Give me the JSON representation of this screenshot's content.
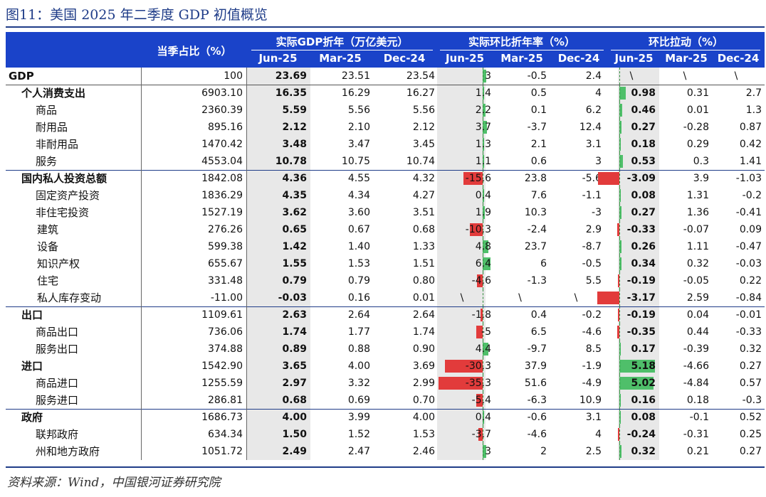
{
  "title": "图11：美国 2025 年二季度 GDP 初值概览",
  "source": "资料来源：Wind，中国银河证券研究院",
  "header": {
    "share": "当季占比（%）",
    "group_gdp": "实际GDP折年（万亿美元）",
    "group_growth": "实际环比折年率（%）",
    "group_pull": "环比拉动（%）",
    "periods": [
      "Jun-25",
      "Mar-25",
      "Dec-24"
    ]
  },
  "colors": {
    "header": "#1a43c9",
    "share_bar": "#6f97d9",
    "neg_bar": "#e23b3b",
    "pos_bar": "#4fbf6a",
    "rule": "#1f3c88"
  },
  "rows": [
    {
      "label": "GDP",
      "indent": 0,
      "bold": true,
      "share": "100",
      "share_val": 100,
      "gdp": [
        "23.69",
        "23.51",
        "23.54"
      ],
      "growth": [
        "3",
        "-0.5",
        "2.4"
      ],
      "growth_val": 3,
      "pull": [
        "\\",
        "\\",
        "\\"
      ],
      "pull_val": null,
      "sep": "top"
    },
    {
      "label": "个人消费支出",
      "indent": 1,
      "bold": true,
      "share": "6903.10",
      "share_val": 6903.1,
      "gdp": [
        "16.35",
        "16.29",
        "16.27"
      ],
      "growth": [
        "1.4",
        "0.5",
        "4"
      ],
      "growth_val": 1.4,
      "pull": [
        "0.98",
        "0.31",
        "2.7"
      ],
      "pull_val": 0.98,
      "sep": "top"
    },
    {
      "label": "商品",
      "indent": 2,
      "bold": false,
      "share": "2360.39",
      "share_val": 2360.39,
      "gdp": [
        "5.59",
        "5.56",
        "5.56"
      ],
      "growth": [
        "2.2",
        "0.1",
        "6.2"
      ],
      "growth_val": 2.2,
      "pull": [
        "0.46",
        "0.01",
        "1.3"
      ],
      "pull_val": 0.46
    },
    {
      "label": "耐用品",
      "indent": 2,
      "bold": false,
      "share": "895.16",
      "share_val": 895.16,
      "gdp": [
        "2.12",
        "2.10",
        "2.12"
      ],
      "growth": [
        "3.7",
        "-3.7",
        "12.4"
      ],
      "growth_val": 3.7,
      "pull": [
        "0.27",
        "-0.28",
        "0.87"
      ],
      "pull_val": 0.27
    },
    {
      "label": "非耐用品",
      "indent": 2,
      "bold": false,
      "share": "1470.42",
      "share_val": 1470.42,
      "gdp": [
        "3.48",
        "3.47",
        "3.45"
      ],
      "growth": [
        "1.3",
        "2.1",
        "3.1"
      ],
      "growth_val": 1.3,
      "pull": [
        "0.18",
        "0.29",
        "0.42"
      ],
      "pull_val": 0.18
    },
    {
      "label": "服务",
      "indent": 2,
      "bold": false,
      "share": "4553.04",
      "share_val": 4553.04,
      "gdp": [
        "10.78",
        "10.75",
        "10.74"
      ],
      "growth": [
        "1.1",
        "0.6",
        "3"
      ],
      "growth_val": 1.1,
      "pull": [
        "0.53",
        "0.3",
        "1.41"
      ],
      "pull_val": 0.53
    },
    {
      "label": "国内私人投资总额",
      "indent": 1,
      "bold": true,
      "share": "1842.08",
      "share_val": 1842.08,
      "gdp": [
        "4.36",
        "4.55",
        "4.32"
      ],
      "growth": [
        "-15.6",
        "23.8",
        "-5.6"
      ],
      "growth_val": -15.6,
      "pull": [
        "-3.09",
        "3.9",
        "-1.03"
      ],
      "pull_val": -3.09,
      "sep": "top"
    },
    {
      "label": "固定资产投资",
      "indent": 2,
      "bold": false,
      "share": "1836.29",
      "share_val": 1836.29,
      "gdp": [
        "4.35",
        "4.34",
        "4.27"
      ],
      "growth": [
        "0.4",
        "7.6",
        "-1.1"
      ],
      "growth_val": 0.4,
      "pull": [
        "0.08",
        "1.31",
        "-0.2"
      ],
      "pull_val": 0.08
    },
    {
      "label": "非住宅投资",
      "indent": 2,
      "bold": false,
      "share": "1527.19",
      "share_val": 1527.19,
      "gdp": [
        "3.62",
        "3.60",
        "3.51"
      ],
      "growth": [
        "1.9",
        "10.3",
        "-3"
      ],
      "growth_val": 1.9,
      "pull": [
        "0.27",
        "1.36",
        "-0.41"
      ],
      "pull_val": 0.27
    },
    {
      "label": "建筑",
      "indent": 3,
      "bold": false,
      "share": "276.26",
      "share_val": 276.26,
      "gdp": [
        "0.65",
        "0.67",
        "0.68"
      ],
      "growth": [
        "-10.3",
        "-2.4",
        "2.9"
      ],
      "growth_val": -10.3,
      "pull": [
        "-0.33",
        "-0.07",
        "0.09"
      ],
      "pull_val": -0.33
    },
    {
      "label": "设备",
      "indent": 3,
      "bold": false,
      "share": "599.38",
      "share_val": 599.38,
      "gdp": [
        "1.42",
        "1.40",
        "1.33"
      ],
      "growth": [
        "4.8",
        "23.7",
        "-8.7"
      ],
      "growth_val": 4.8,
      "pull": [
        "0.26",
        "1.11",
        "-0.47"
      ],
      "pull_val": 0.26
    },
    {
      "label": "知识产权",
      "indent": 3,
      "bold": false,
      "share": "655.67",
      "share_val": 655.67,
      "gdp": [
        "1.55",
        "1.53",
        "1.51"
      ],
      "growth": [
        "6.4",
        "6",
        "-0.5"
      ],
      "growth_val": 6.4,
      "pull": [
        "0.34",
        "0.32",
        "-0.03"
      ],
      "pull_val": 0.34
    },
    {
      "label": "住宅",
      "indent": 3,
      "bold": false,
      "share": "331.48",
      "share_val": 331.48,
      "gdp": [
        "0.79",
        "0.79",
        "0.80"
      ],
      "growth": [
        "-4.6",
        "-1.3",
        "5.5"
      ],
      "growth_val": -4.6,
      "pull": [
        "-0.19",
        "-0.05",
        "0.22"
      ],
      "pull_val": -0.19
    },
    {
      "label": "私人库存变动",
      "indent": 3,
      "bold": false,
      "share": "-11.00",
      "share_val": -11.0,
      "gdp": [
        "-0.03",
        "0.16",
        "0.01"
      ],
      "growth": [
        "\\",
        "\\",
        "\\"
      ],
      "growth_val": null,
      "pull": [
        "-3.17",
        "2.59",
        "-0.84"
      ],
      "pull_val": -3.17
    },
    {
      "label": "出口",
      "indent": 1,
      "bold": true,
      "share": "1109.61",
      "share_val": 1109.61,
      "gdp": [
        "2.63",
        "2.64",
        "2.64"
      ],
      "growth": [
        "-1.8",
        "0.4",
        "-0.2"
      ],
      "growth_val": -1.8,
      "pull": [
        "-0.19",
        "0.04",
        "-0.01"
      ],
      "pull_val": -0.19,
      "sep": "top"
    },
    {
      "label": "商品出口",
      "indent": 2,
      "bold": false,
      "share": "736.06",
      "share_val": 736.06,
      "gdp": [
        "1.74",
        "1.77",
        "1.74"
      ],
      "growth": [
        "-5",
        "6.5",
        "-4.6"
      ],
      "growth_val": -5,
      "pull": [
        "-0.35",
        "0.44",
        "-0.33"
      ],
      "pull_val": -0.35
    },
    {
      "label": "服务出口",
      "indent": 2,
      "bold": false,
      "share": "374.88",
      "share_val": 374.88,
      "gdp": [
        "0.89",
        "0.88",
        "0.90"
      ],
      "growth": [
        "4.4",
        "-9.7",
        "8.5"
      ],
      "growth_val": 4.4,
      "pull": [
        "0.17",
        "-0.39",
        "0.32"
      ],
      "pull_val": 0.17
    },
    {
      "label": "进口",
      "indent": 1,
      "bold": true,
      "share": "1542.90",
      "share_val": 1542.9,
      "gdp": [
        "3.65",
        "4.00",
        "3.69"
      ],
      "growth": [
        "-30.3",
        "37.9",
        "-1.9"
      ],
      "growth_val": -30.3,
      "pull": [
        "5.18",
        "-4.66",
        "0.27"
      ],
      "pull_val": 5.18
    },
    {
      "label": "商品进口",
      "indent": 2,
      "bold": false,
      "share": "1255.59",
      "share_val": 1255.59,
      "gdp": [
        "2.97",
        "3.32",
        "2.99"
      ],
      "growth": [
        "-35.3",
        "51.6",
        "-4.9"
      ],
      "growth_val": -35.3,
      "pull": [
        "5.02",
        "-4.84",
        "0.57"
      ],
      "pull_val": 5.02
    },
    {
      "label": "服务进口",
      "indent": 2,
      "bold": false,
      "share": "286.81",
      "share_val": 286.81,
      "gdp": [
        "0.68",
        "0.69",
        "0.70"
      ],
      "growth": [
        "-5.4",
        "-6.3",
        "10.9"
      ],
      "growth_val": -5.4,
      "pull": [
        "0.16",
        "0.18",
        "-0.3"
      ],
      "pull_val": 0.16
    },
    {
      "label": "政府",
      "indent": 1,
      "bold": true,
      "share": "1686.73",
      "share_val": 1686.73,
      "gdp": [
        "4.00",
        "3.99",
        "4.00"
      ],
      "growth": [
        "0.4",
        "-0.6",
        "3.1"
      ],
      "growth_val": 0.4,
      "pull": [
        "0.08",
        "-0.1",
        "0.52"
      ],
      "pull_val": 0.08,
      "sep": "top"
    },
    {
      "label": "联邦政府",
      "indent": 2,
      "bold": false,
      "share": "634.34",
      "share_val": 634.34,
      "gdp": [
        "1.50",
        "1.52",
        "1.53"
      ],
      "growth": [
        "-3.7",
        "-4.6",
        "4"
      ],
      "growth_val": -3.7,
      "pull": [
        "-0.24",
        "-0.31",
        "0.25"
      ],
      "pull_val": -0.24
    },
    {
      "label": "州和地方政府",
      "indent": 2,
      "bold": false,
      "share": "1051.72",
      "share_val": 1051.72,
      "gdp": [
        "2.49",
        "2.47",
        "2.46"
      ],
      "growth": [
        "3",
        "2",
        "2.5"
      ],
      "growth_val": 3,
      "pull": [
        "0.32",
        "0.21",
        "0.27"
      ],
      "pull_val": 0.32
    }
  ]
}
